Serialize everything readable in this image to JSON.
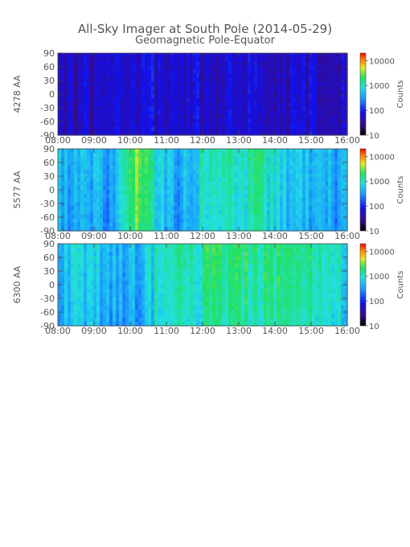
{
  "title": "All-Sky Imager at South Pole (2014-05-29)",
  "subtitle": "Geomagnetic Pole-Equator",
  "chart_data": [
    {
      "type": "heatmap",
      "ylabel": "4278 AA",
      "x_ticks": [
        "08:00",
        "09:00",
        "10:00",
        "11:00",
        "12:00",
        "13:00",
        "14:00",
        "15:00",
        "16:00"
      ],
      "y_ticks": [
        90,
        60,
        30,
        0,
        -30,
        -60,
        -90
      ],
      "ylim": [
        -90,
        90
      ],
      "xlim": [
        "08:00",
        "16:00"
      ],
      "colorbar": {
        "label": "Counts",
        "scale": "log",
        "range": [
          10,
          20000
        ],
        "ticks": [
          "10000",
          "1000",
          "100",
          "10"
        ]
      },
      "intensity_profile": {
        "hours": [
          8.0,
          8.5,
          9.0,
          9.5,
          10.0,
          10.2,
          10.5,
          11.0,
          11.5,
          12.0,
          12.5,
          13.0,
          13.5,
          14.0,
          14.5,
          15.0,
          15.5,
          16.0
        ],
        "counts": [
          55,
          55,
          58,
          60,
          75,
          80,
          70,
          62,
          60,
          65,
          62,
          62,
          60,
          60,
          58,
          58,
          57,
          56
        ]
      }
    },
    {
      "type": "heatmap",
      "ylabel": "5577 AA",
      "x_ticks": [
        "08:00",
        "09:00",
        "10:00",
        "11:00",
        "12:00",
        "13:00",
        "14:00",
        "15:00",
        "16:00"
      ],
      "y_ticks": [
        90,
        60,
        30,
        0,
        -30,
        -60,
        -90
      ],
      "ylim": [
        -90,
        90
      ],
      "xlim": [
        "08:00",
        "16:00"
      ],
      "colorbar": {
        "label": "Counts",
        "scale": "log",
        "range": [
          10,
          20000
        ],
        "ticks": [
          "10000",
          "1000",
          "100",
          "10"
        ]
      },
      "intensity_profile": {
        "hours": [
          8.0,
          8.5,
          9.0,
          9.5,
          10.0,
          10.2,
          10.5,
          11.0,
          11.5,
          12.0,
          12.5,
          13.0,
          13.5,
          14.0,
          14.5,
          15.0,
          15.5,
          16.0
        ],
        "counts": [
          350,
          400,
          350,
          250,
          1500,
          3000,
          1200,
          400,
          350,
          800,
          900,
          800,
          1200,
          700,
          500,
          400,
          350,
          300
        ]
      }
    },
    {
      "type": "heatmap",
      "ylabel": "6300 AA",
      "x_ticks": [
        "08:00",
        "09:00",
        "10:00",
        "11:00",
        "12:00",
        "13:00",
        "14:00",
        "15:00",
        "16:00"
      ],
      "y_ticks": [
        90,
        60,
        30,
        0,
        -30,
        -60,
        -90
      ],
      "ylim": [
        -90,
        90
      ],
      "xlim": [
        "08:00",
        "16:00"
      ],
      "colorbar": {
        "label": "Counts",
        "scale": "log",
        "range": [
          10,
          20000
        ],
        "ticks": [
          "10000",
          "1000",
          "100",
          "10"
        ]
      },
      "intensity_profile": {
        "hours": [
          8.0,
          8.5,
          9.0,
          9.5,
          10.0,
          10.2,
          10.5,
          11.0,
          11.5,
          12.0,
          12.5,
          13.0,
          13.5,
          14.0,
          14.5,
          15.0,
          15.5,
          16.0
        ],
        "counts": [
          500,
          550,
          500,
          450,
          300,
          400,
          600,
          900,
          1000,
          1200,
          1500,
          1400,
          1300,
          1300,
          1200,
          1100,
          900,
          600
        ]
      }
    }
  ]
}
